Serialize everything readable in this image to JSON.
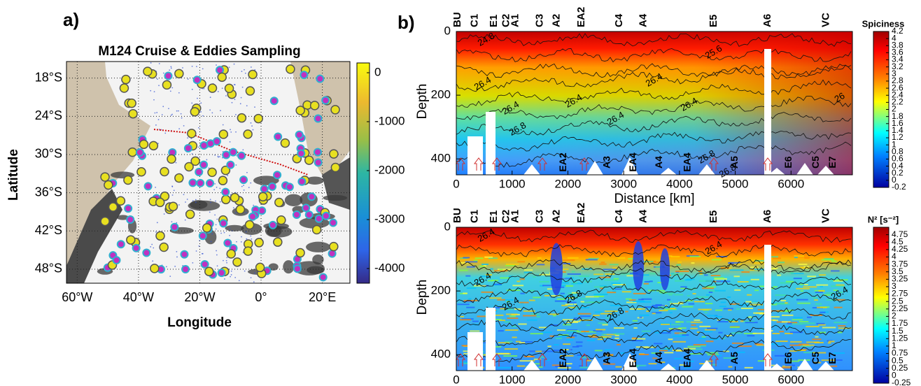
{
  "chart_data": [
    {
      "type": "map",
      "panel": "a)",
      "title": "M124 Cruise & Eddies Sampling",
      "xlabel": "Longitude",
      "ylabel": "Latitude",
      "xlim": [
        -63.5,
        29
      ],
      "ylim": [
        -50.2,
        -15.4
      ],
      "xticks": [
        {
          "value": -60,
          "label": "60°W"
        },
        {
          "value": -40,
          "label": "40°W"
        },
        {
          "value": -20,
          "label": "20°W"
        },
        {
          "value": 0,
          "label": "0°"
        },
        {
          "value": 20,
          "label": "20°E"
        }
      ],
      "yticks": [
        {
          "value": -18,
          "label": "18°S"
        },
        {
          "value": -24,
          "label": "24°S"
        },
        {
          "value": -30,
          "label": "30°S"
        },
        {
          "value": -36,
          "label": "36°S"
        },
        {
          "value": -42,
          "label": "42°S"
        },
        {
          "value": -48,
          "label": "48°S"
        }
      ],
      "grid": true,
      "colorbar": {
        "lim": [
          -4300,
          200
        ],
        "ticks": [
          0,
          -1000,
          -2000,
          -3000,
          -4000
        ]
      }
    },
    {
      "type": "section",
      "panel": "b)",
      "xlabel": "Distance [km]",
      "ylabel": "Depth",
      "xlim": [
        0,
        7100
      ],
      "ylim": [
        0,
        450
      ],
      "xticks": [
        0,
        1000,
        2000,
        3000,
        4000,
        5000,
        6000
      ],
      "yticks": [
        0,
        200,
        400
      ],
      "stations": {
        "labels": [
          "BU",
          "C1",
          "E1",
          "C2",
          "A1",
          "C3",
          "A2",
          "EA2",
          "C4",
          "A4",
          "E5",
          "A6",
          "VC"
        ],
        "km": [
          25,
          330,
          680,
          895,
          1060,
          1500,
          1800,
          2245,
          2925,
          3355,
          4615,
          5585,
          6630
        ]
      },
      "eddies": {
        "labels": [
          "EA2",
          "A3",
          "EA4",
          "A4",
          "EA4",
          "A5",
          "E6",
          "C5",
          "E7"
        ],
        "km": [
          1920,
          2710,
          3175,
          3640,
          4150,
          4995,
          5960,
          6450,
          6750
        ]
      },
      "contour_labels": [
        "24.8",
        "25.6",
        "26",
        "26.4",
        "26.4",
        "26.4",
        "26.4",
        "26.4",
        "26.4",
        "26.8",
        "26.8",
        "26.8"
      ],
      "colorbar": {
        "label": "Spiciness",
        "lim": [
          -0.2,
          4.2
        ],
        "ticks": [
          4.2,
          4,
          3.8,
          3.6,
          3.4,
          3.2,
          3,
          2.8,
          2.6,
          2.4,
          2.2,
          2,
          1.8,
          1.6,
          1.4,
          1.2,
          1,
          0.8,
          0.6,
          0.4,
          0.2,
          0,
          -0.2
        ]
      }
    },
    {
      "type": "section",
      "ylabel": "Depth",
      "xlim": [
        0,
        7100
      ],
      "ylim": [
        0,
        450
      ],
      "xticks": [
        0,
        1000,
        2000,
        3000,
        4000,
        5000,
        6000
      ],
      "yticks": [
        0,
        200,
        400
      ],
      "stations": {
        "labels": [
          "BU",
          "C1",
          "E1",
          "C2",
          "A1",
          "C3",
          "A2",
          "EA2",
          "C4",
          "A4",
          "E5",
          "A6",
          "VC"
        ],
        "km": [
          25,
          330,
          680,
          895,
          1060,
          1500,
          1800,
          2245,
          2925,
          3355,
          4615,
          5585,
          6630
        ]
      },
      "eddies": {
        "labels": [
          "EA2",
          "A3",
          "EA4",
          "A4",
          "EA4",
          "A5",
          "E6",
          "C5",
          "E7"
        ],
        "km": [
          1920,
          2710,
          3175,
          3640,
          4150,
          4995,
          5960,
          6450,
          6750
        ]
      },
      "contour_labels": [
        "26.4",
        "26.4",
        "26.4",
        "26.4",
        "26.4",
        "26.8",
        "26.8"
      ],
      "colorbar": {
        "label": "N² [s⁻²]",
        "lim": [
          -0.25,
          5
        ],
        "ticks": [
          4.75,
          4.5,
          4.25,
          4,
          3.75,
          3.5,
          3.25,
          3,
          2.75,
          2.5,
          2.25,
          2,
          1.75,
          1.5,
          1.25,
          1,
          0.75,
          0.5,
          0.25,
          0,
          -0.25
        ]
      }
    }
  ]
}
